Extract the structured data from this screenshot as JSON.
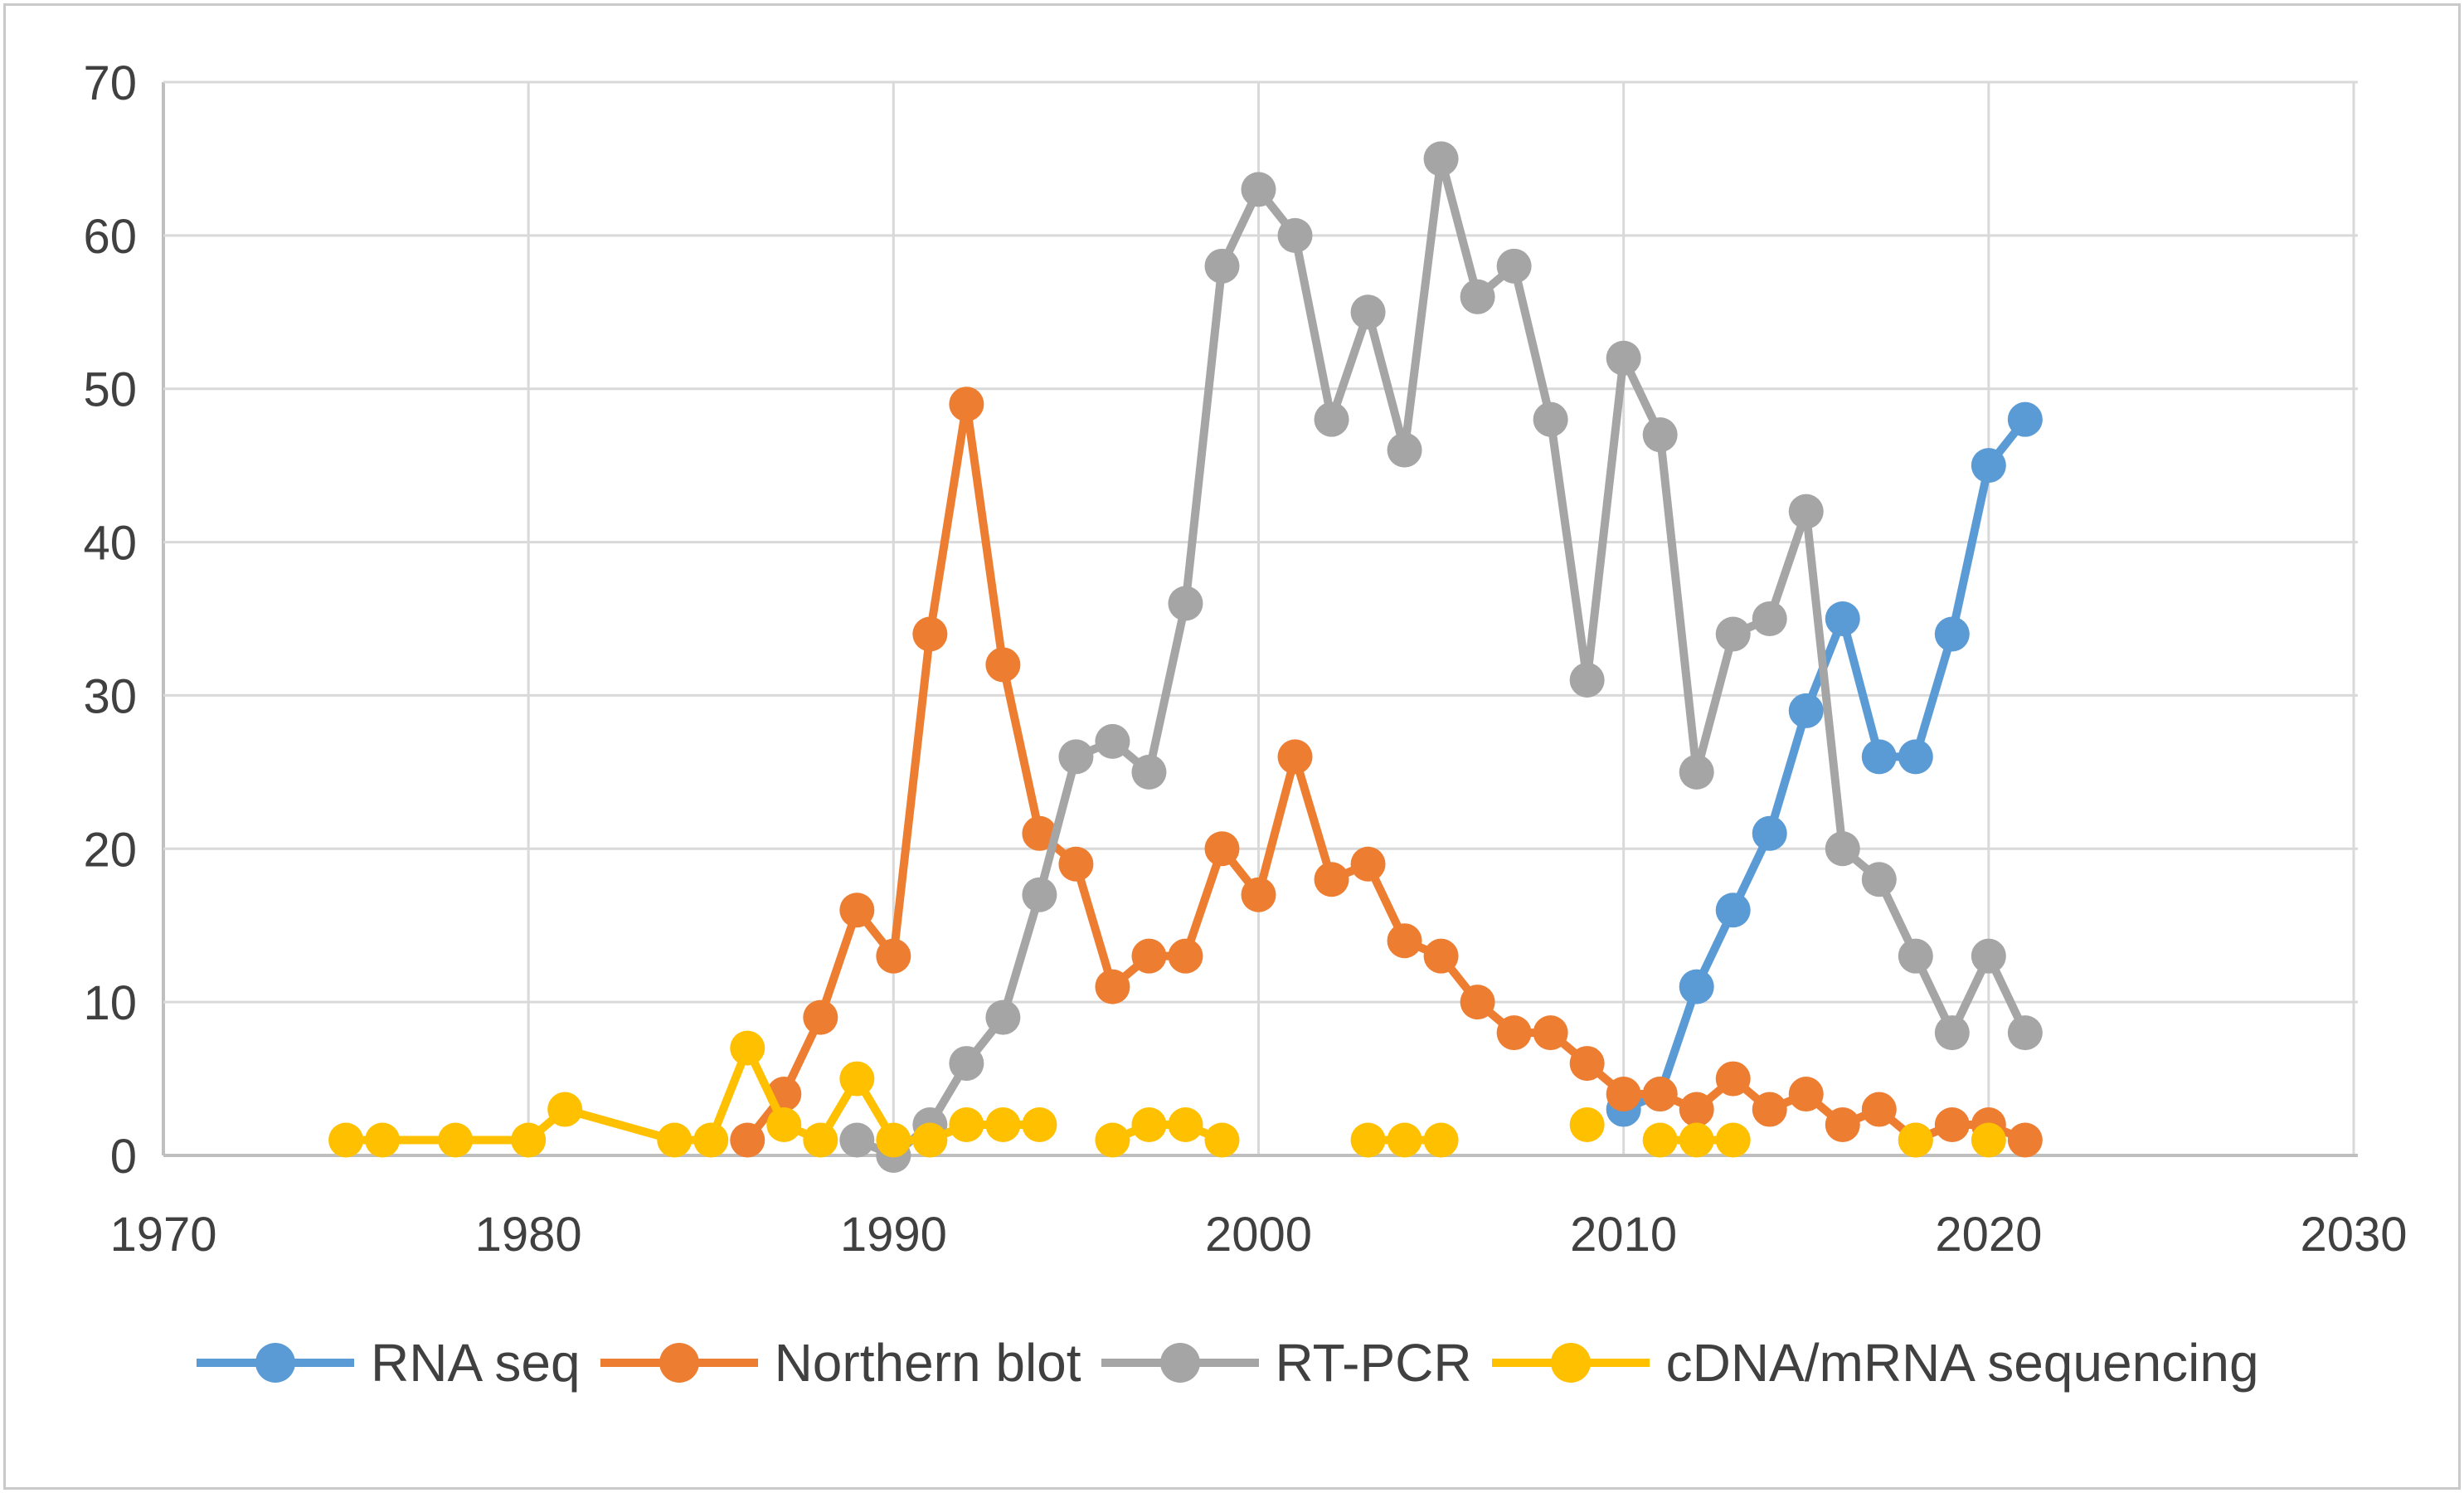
{
  "figure": {
    "background_color": "#ffffff",
    "border_color": "#c9c9c9",
    "gridline_color": "#d9d9d9",
    "axis_line_color": "#bfbfbf",
    "tick_text_color": "#404040"
  },
  "chart_data": {
    "type": "line",
    "title": "",
    "xlabel": "",
    "ylabel": "",
    "xlim": [
      1970,
      2030
    ],
    "ylim": [
      0,
      70
    ],
    "x_ticks": [
      1970,
      1980,
      1990,
      2000,
      2010,
      2020,
      2030
    ],
    "y_ticks": [
      0,
      10,
      20,
      30,
      40,
      50,
      60,
      70
    ],
    "grid": true,
    "legend_position": "bottom",
    "marker": "circle",
    "series": [
      {
        "name": "RNA seq",
        "color": "#5B9BD5",
        "points": [
          [
            2010,
            3
          ],
          [
            2011,
            4
          ],
          [
            2012,
            11
          ],
          [
            2013,
            16
          ],
          [
            2014,
            21
          ],
          [
            2015,
            29
          ],
          [
            2016,
            35
          ],
          [
            2017,
            26
          ],
          [
            2018,
            26
          ],
          [
            2019,
            34
          ],
          [
            2020,
            45
          ],
          [
            2021,
            48
          ]
        ]
      },
      {
        "name": "Northern blot",
        "color": "#ED7D31",
        "points": [
          [
            1986,
            1
          ],
          [
            1987,
            4
          ],
          [
            1988,
            9
          ],
          [
            1989,
            16
          ],
          [
            1990,
            13
          ],
          [
            1991,
            34
          ],
          [
            1992,
            49
          ],
          [
            1993,
            32
          ],
          [
            1994,
            21
          ],
          [
            1995,
            19
          ],
          [
            1996,
            11
          ],
          [
            1997,
            13
          ],
          [
            1998,
            13
          ],
          [
            1999,
            20
          ],
          [
            2000,
            17
          ],
          [
            2001,
            26
          ],
          [
            2002,
            18
          ],
          [
            2003,
            19
          ],
          [
            2004,
            14
          ],
          [
            2005,
            13
          ],
          [
            2006,
            10
          ],
          [
            2007,
            8
          ],
          [
            2008,
            8
          ],
          [
            2009,
            6
          ],
          [
            2010,
            4
          ],
          [
            2011,
            4
          ],
          [
            2012,
            3
          ],
          [
            2013,
            5
          ],
          [
            2014,
            3
          ],
          [
            2015,
            4
          ],
          [
            2016,
            2
          ],
          [
            2017,
            3
          ],
          [
            2018,
            1
          ],
          [
            2019,
            2
          ],
          [
            2020,
            2
          ],
          [
            2021,
            1
          ]
        ]
      },
      {
        "name": "RT-PCR",
        "color": "#A5A5A5",
        "points": [
          [
            1989,
            1
          ],
          [
            1990,
            0
          ],
          [
            1991,
            2
          ],
          [
            1992,
            6
          ],
          [
            1993,
            9
          ],
          [
            1994,
            17
          ],
          [
            1995,
            26
          ],
          [
            1996,
            27
          ],
          [
            1997,
            25
          ],
          [
            1998,
            36
          ],
          [
            1999,
            58
          ],
          [
            2000,
            63
          ],
          [
            2001,
            60
          ],
          [
            2002,
            48
          ],
          [
            2003,
            55
          ],
          [
            2004,
            46
          ],
          [
            2005,
            65
          ],
          [
            2006,
            56
          ],
          [
            2007,
            58
          ],
          [
            2008,
            48
          ],
          [
            2009,
            31
          ],
          [
            2010,
            52
          ],
          [
            2011,
            47
          ],
          [
            2012,
            25
          ],
          [
            2013,
            34
          ],
          [
            2014,
            35
          ],
          [
            2015,
            42
          ],
          [
            2016,
            20
          ],
          [
            2017,
            18
          ],
          [
            2018,
            13
          ],
          [
            2019,
            8
          ],
          [
            2020,
            13
          ],
          [
            2021,
            8
          ]
        ]
      },
      {
        "name": "cDNA/mRNA sequencing",
        "color": "#FFC000",
        "points": [
          [
            1975,
            1
          ],
          [
            1976,
            1
          ],
          [
            1978,
            1
          ],
          [
            1980,
            1
          ],
          [
            1981,
            3
          ],
          [
            1984,
            1
          ],
          [
            1985,
            1
          ],
          [
            1986,
            7
          ],
          [
            1987,
            2
          ],
          [
            1988,
            1
          ],
          [
            1989,
            5
          ],
          [
            1990,
            1
          ],
          [
            1991,
            1
          ],
          [
            1992,
            2
          ],
          [
            1993,
            2
          ],
          [
            1994,
            2
          ],
          null,
          [
            1996,
            1
          ],
          [
            1997,
            2
          ],
          [
            1998,
            2
          ],
          [
            1999,
            1
          ],
          null,
          [
            2003,
            1
          ],
          [
            2004,
            1
          ],
          [
            2005,
            1
          ],
          null,
          [
            2009,
            2
          ],
          null,
          [
            2011,
            1
          ],
          [
            2012,
            1
          ],
          [
            2013,
            1
          ],
          null,
          [
            2018,
            1
          ],
          null,
          [
            2020,
            1
          ]
        ]
      }
    ]
  }
}
